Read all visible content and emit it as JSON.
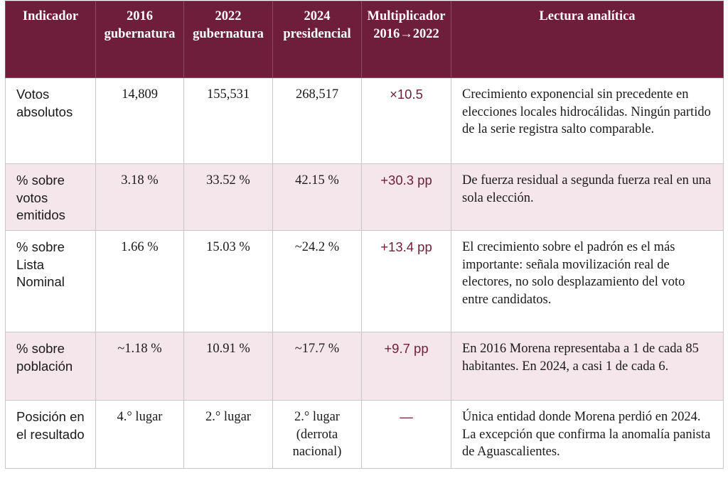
{
  "header": {
    "col1": "Indicador",
    "col2": "2016 gubernatura",
    "col3": "2022 gubernatura",
    "col4": "2024 presidencial",
    "col5": "Multiplicador 2016→2022",
    "col6": "Lectura analítica"
  },
  "rows": [
    {
      "indicator": "Votos absolutos",
      "v2016": "14,809",
      "v2022": "155,531",
      "v2024": "268,517",
      "mult": "×10.5",
      "reading": "Crecimiento exponencial sin precedente en elecciones locales hidrocálidas. Ningún partido de la serie registra salto comparable."
    },
    {
      "indicator": "% sobre votos emitidos",
      "v2016": "3.18 %",
      "v2022": "33.52 %",
      "v2024": "42.15 %",
      "mult": "+30.3 pp",
      "reading": "De fuerza residual a segunda fuerza real en una sola elección."
    },
    {
      "indicator": "% sobre Lista Nominal",
      "v2016": "1.66 %",
      "v2022": "15.03 %",
      "v2024": "~24.2 %",
      "mult": "+13.4 pp",
      "reading": "El crecimiento sobre el padrón es el más importante: señala movilización real de electores, no solo desplazamiento del voto entre candidatos."
    },
    {
      "indicator": "% sobre población",
      "v2016": "~1.18 %",
      "v2022": "10.91 %",
      "v2024": "~17.7 %",
      "mult": "+9.7 pp",
      "reading": "En 2016 Morena representaba a 1 de cada 85 habitantes. En 2024, a casi 1 de cada 6."
    },
    {
      "indicator": "Posición en el resultado",
      "v2016": "4.° lugar",
      "v2022": "2.° lugar",
      "v2024": "2.° lugar (derrota nacional)",
      "mult": "—",
      "reading": "Única entidad donde Morena perdió en 2024. La excepción que confirma la anomalía panista de Aguascalientes."
    }
  ],
  "colors": {
    "header_bg": "#6e1e3b",
    "alt_row_bg": "#f5e6ec",
    "accent_text": "#6e1e3b"
  }
}
